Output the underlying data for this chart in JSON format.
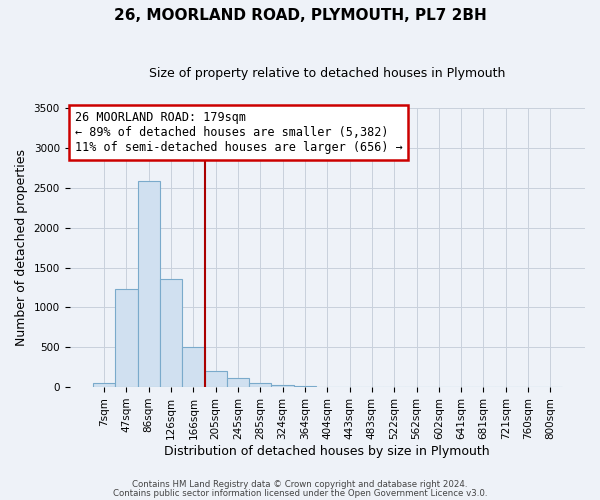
{
  "title": "26, MOORLAND ROAD, PLYMOUTH, PL7 2BH",
  "subtitle": "Size of property relative to detached houses in Plymouth",
  "xlabel": "Distribution of detached houses by size in Plymouth",
  "ylabel": "Number of detached properties",
  "bar_labels": [
    "7sqm",
    "47sqm",
    "86sqm",
    "126sqm",
    "166sqm",
    "205sqm",
    "245sqm",
    "285sqm",
    "324sqm",
    "364sqm",
    "404sqm",
    "443sqm",
    "483sqm",
    "522sqm",
    "562sqm",
    "602sqm",
    "641sqm",
    "681sqm",
    "721sqm",
    "760sqm",
    "800sqm"
  ],
  "bar_values": [
    50,
    1230,
    2590,
    1350,
    500,
    200,
    110,
    50,
    30,
    10,
    5,
    2,
    1,
    0,
    0,
    0,
    0,
    0,
    0,
    0,
    0
  ],
  "bar_color": "#d0e0f0",
  "bar_edge_color": "#7aaacb",
  "vline_x_index": 4.5,
  "vline_color": "#aa0000",
  "annotation_title": "26 MOORLAND ROAD: 179sqm",
  "annotation_line1": "← 89% of detached houses are smaller (5,382)",
  "annotation_line2": "11% of semi-detached houses are larger (656) →",
  "annotation_box_edge_color": "#cc0000",
  "ylim": [
    0,
    3500
  ],
  "yticks": [
    0,
    500,
    1000,
    1500,
    2000,
    2500,
    3000,
    3500
  ],
  "footer1": "Contains HM Land Registry data © Crown copyright and database right 2024.",
  "footer2": "Contains public sector information licensed under the Open Government Licence v3.0.",
  "background_color": "#eef2f8",
  "plot_bg_color": "#eef2f8",
  "grid_color": "#c8d0dc",
  "title_fontsize": 11,
  "subtitle_fontsize": 9,
  "axis_label_fontsize": 9,
  "tick_fontsize": 7.5,
  "annotation_fontsize": 8.5
}
